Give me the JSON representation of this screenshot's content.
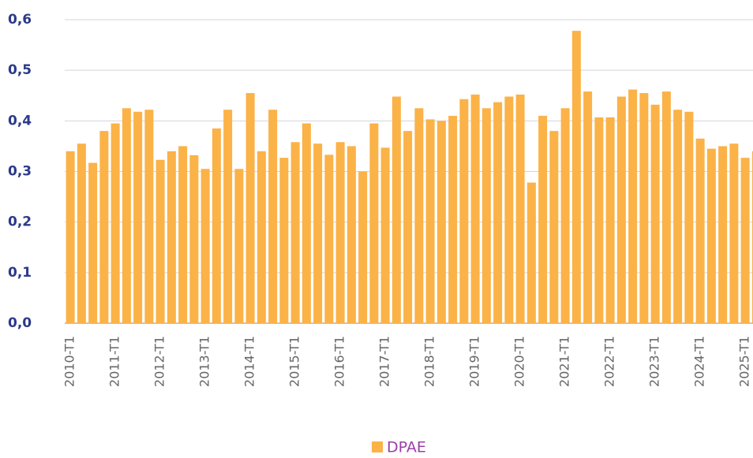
{
  "chart_data": {
    "type": "bar",
    "categories": [
      "2010-T1",
      null,
      null,
      null,
      "2011-T1",
      null,
      null,
      null,
      "2012-T1",
      null,
      null,
      null,
      "2013-T1",
      null,
      null,
      null,
      "2014-T1",
      null,
      null,
      null,
      "2015-T1",
      null,
      null,
      null,
      "2016-T1",
      null,
      null,
      null,
      "2017-T1",
      null,
      null,
      null,
      "2018-T1",
      null,
      null,
      null,
      "2019-T1",
      null,
      null,
      null,
      "2020-T1",
      null,
      null,
      null,
      "2021-T1",
      null,
      null,
      null,
      "2022-T1",
      null,
      null,
      null,
      "2023-T1",
      null,
      null,
      null,
      "2024-T1",
      null,
      null,
      null,
      "2025-T1",
      null
    ],
    "series": [
      {
        "name": "DPAE",
        "color": "#fbb247",
        "values": [
          0.34,
          0.355,
          0.317,
          0.38,
          0.395,
          0.425,
          0.418,
          0.422,
          0.323,
          0.34,
          0.35,
          0.332,
          0.305,
          0.385,
          0.422,
          0.305,
          0.455,
          0.34,
          0.422,
          0.327,
          0.358,
          0.395,
          0.355,
          0.333,
          0.358,
          0.35,
          0.3,
          0.395,
          0.347,
          0.448,
          0.38,
          0.425,
          0.403,
          0.4,
          0.41,
          0.443,
          0.452,
          0.425,
          0.437,
          0.448,
          0.452,
          0.278,
          0.41,
          0.38,
          0.425,
          0.578,
          0.458,
          0.407,
          0.407,
          0.448,
          0.462,
          0.455,
          0.432,
          0.458,
          0.422,
          0.418,
          0.365,
          0.345,
          0.35,
          0.355,
          0.327,
          0.34
        ]
      }
    ],
    "ylim": [
      0,
      0.6
    ],
    "yticks": [
      {
        "value": 0,
        "label": "0,0"
      },
      {
        "value": 0.1,
        "label": "0,1"
      },
      {
        "value": 0.2,
        "label": "0,2"
      },
      {
        "value": 0.3,
        "label": "0,3"
      },
      {
        "value": 0.4,
        "label": "0,4"
      },
      {
        "value": 0.5,
        "label": "0,5"
      },
      {
        "value": 0.6,
        "label": "0,6"
      }
    ],
    "grid": true,
    "legend": "bottom"
  }
}
